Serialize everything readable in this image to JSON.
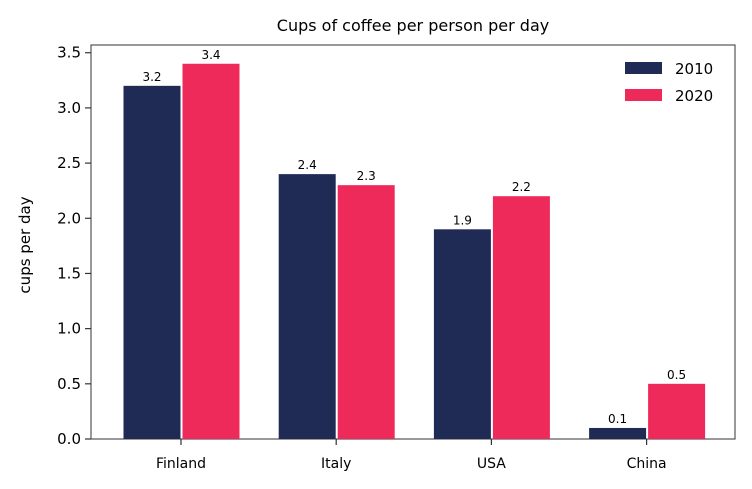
{
  "chart_data": {
    "type": "bar",
    "title": "Cups of coffee per person per day",
    "xlabel": "",
    "ylabel": "cups per day",
    "categories": [
      "Finland",
      "Italy",
      "USA",
      "China"
    ],
    "series": [
      {
        "name": "2010",
        "values": [
          3.2,
          2.4,
          1.9,
          0.1
        ],
        "color": "#1f2a55"
      },
      {
        "name": "2020",
        "values": [
          3.4,
          2.3,
          2.2,
          0.5
        ],
        "color": "#ee2a5a"
      }
    ],
    "yticks": [
      "0.0",
      "0.5",
      "1.0",
      "1.5",
      "2.0",
      "2.5",
      "3.0",
      "3.5"
    ],
    "ylim": [
      0,
      3.57
    ],
    "grid": false,
    "legend_position": "top-right",
    "data_labels": true
  }
}
